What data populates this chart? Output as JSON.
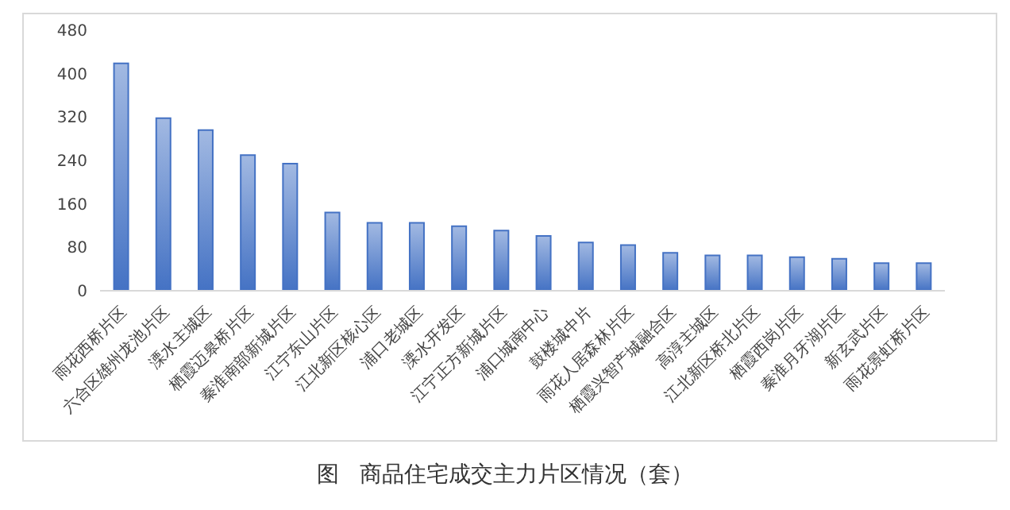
{
  "chart_data": {
    "type": "bar",
    "title": "图   商品住宅成交主力片区情况（套）",
    "categories": [
      "雨花西桥片区",
      "六合区雄州龙池片区",
      "溧水主城区",
      "栖霞迈皋桥片区",
      "秦淮南部新城片区",
      "江宁东山片区",
      "江北新区核心区",
      "浦口老城区",
      "溧水开发区",
      "江宁正方新城片区",
      "浦口城南中心",
      "鼓楼城中片",
      "雨花人居森林片区",
      "栖霞兴智产城融合区",
      "高淳主城区",
      "江北新区桥北片区",
      "栖霞西岗片区",
      "秦淮月牙湖片区",
      "新玄武片区",
      "雨花景虹桥片区"
    ],
    "values": [
      419,
      318,
      296,
      250,
      234,
      144,
      125,
      125,
      119,
      111,
      101,
      89,
      84,
      70,
      65,
      65,
      62,
      59,
      51,
      51
    ],
    "color": "#4472c4",
    "ylim": [
      0,
      480
    ],
    "yticks": [
      0,
      80,
      160,
      240,
      320,
      400,
      480
    ]
  }
}
